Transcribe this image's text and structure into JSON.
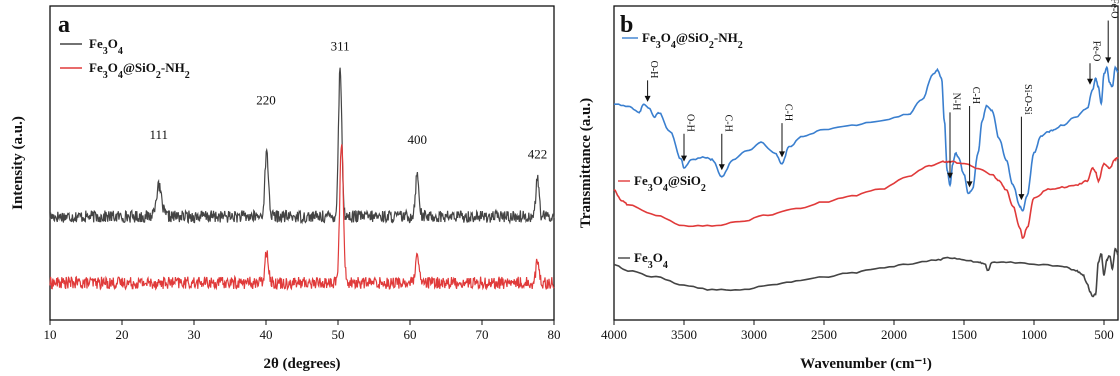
{
  "chart_data": [
    {
      "type": "line",
      "panel": "a",
      "xlabel": "2θ (degrees)",
      "ylabel": "Intensity (a.u.)",
      "xlim": [
        10,
        80
      ],
      "xticks": [
        10,
        20,
        30,
        40,
        50,
        60,
        70,
        80
      ],
      "y_tick_labels": false,
      "grid": false,
      "legend_position": "top-left",
      "peak_labels": [
        {
          "x": 25.1,
          "y": 0.64,
          "text": "111"
        },
        {
          "x": 40.0,
          "y": 0.78,
          "text": "220"
        },
        {
          "x": 50.3,
          "y": 1.0,
          "text": "311"
        },
        {
          "x": 61.0,
          "y": 0.62,
          "text": "400"
        },
        {
          "x": 77.7,
          "y": 0.56,
          "text": "422"
        }
      ],
      "series": [
        {
          "name": "Fe3O4",
          "color": "#444444",
          "baseline": 0.34,
          "noise": 0.025,
          "peaks": [
            [
              25.1,
              0.12,
              0.55
            ],
            [
              40.1,
              0.26,
              0.35
            ],
            [
              50.3,
              0.62,
              0.32
            ],
            [
              61.0,
              0.17,
              0.35
            ],
            [
              77.7,
              0.16,
              0.3
            ]
          ]
        },
        {
          "name": "Fe3O4@SiO2-NH2",
          "color": "#e03a3a",
          "baseline": 0.07,
          "noise": 0.025,
          "peaks": [
            [
              40.1,
              0.13,
              0.35
            ],
            [
              50.5,
              0.58,
              0.35
            ],
            [
              61.0,
              0.1,
              0.35
            ],
            [
              77.7,
              0.09,
              0.3
            ]
          ]
        }
      ]
    },
    {
      "type": "line",
      "panel": "b",
      "xlabel": "Wavenumber (cm⁻¹)",
      "ylabel": "Transmittance (a.u.)",
      "xlim": [
        4000,
        400
      ],
      "xticks": [
        4000,
        3500,
        3000,
        2500,
        2000,
        1500,
        1000,
        500
      ],
      "y_tick_labels": false,
      "grid": false,
      "series": [
        {
          "name": "Fe3O4@SiO2-NH2",
          "color": "#3a7fcf",
          "x": [
            4000,
            3900,
            3820,
            3790,
            3750,
            3710,
            3680,
            3600,
            3520,
            3500,
            3450,
            3350,
            3300,
            3230,
            3150,
            3050,
            2950,
            2850,
            2800,
            2750,
            2650,
            2500,
            2300,
            2100,
            1900,
            1800,
            1720,
            1690,
            1660,
            1640,
            1620,
            1600,
            1580,
            1560,
            1540,
            1500,
            1470,
            1440,
            1400,
            1370,
            1340,
            1300,
            1250,
            1200,
            1150,
            1100,
            1080,
            1050,
            1000,
            950,
            900,
            850,
            800,
            700,
            620,
            580,
            560,
            540,
            520,
            500,
            480,
            460,
            440,
            420,
            400
          ],
          "y": [
            0.78,
            0.77,
            0.74,
            0.78,
            0.76,
            0.72,
            0.74,
            0.65,
            0.52,
            0.48,
            0.52,
            0.53,
            0.52,
            0.44,
            0.52,
            0.56,
            0.6,
            0.55,
            0.5,
            0.58,
            0.63,
            0.66,
            0.68,
            0.7,
            0.73,
            0.8,
            0.92,
            0.94,
            0.9,
            0.7,
            0.47,
            0.4,
            0.5,
            0.55,
            0.53,
            0.45,
            0.36,
            0.38,
            0.55,
            0.7,
            0.77,
            0.75,
            0.62,
            0.52,
            0.4,
            0.3,
            0.28,
            0.35,
            0.55,
            0.63,
            0.65,
            0.66,
            0.68,
            0.72,
            0.76,
            0.85,
            0.9,
            0.86,
            0.78,
            0.92,
            0.95,
            0.88,
            0.86,
            0.95,
            0.93
          ]
        },
        {
          "name": "Fe3O4@SiO2",
          "color": "#e03a3a",
          "x": [
            4000,
            3950,
            3900,
            3700,
            3500,
            3300,
            3100,
            2900,
            2700,
            2500,
            2300,
            2100,
            1900,
            1750,
            1650,
            1600,
            1500,
            1400,
            1300,
            1250,
            1200,
            1150,
            1100,
            1080,
            1050,
            1000,
            900,
            800,
            700,
            620,
            580,
            560,
            540,
            500,
            460,
            420,
            400
          ],
          "y": [
            0.38,
            0.33,
            0.31,
            0.26,
            0.21,
            0.21,
            0.23,
            0.26,
            0.29,
            0.32,
            0.35,
            0.38,
            0.44,
            0.49,
            0.51,
            0.51,
            0.5,
            0.48,
            0.45,
            0.42,
            0.38,
            0.3,
            0.2,
            0.15,
            0.2,
            0.34,
            0.38,
            0.39,
            0.4,
            0.42,
            0.48,
            0.46,
            0.42,
            0.5,
            0.48,
            0.52,
            0.53
          ]
        },
        {
          "name": "Fe3O4",
          "color": "#444444",
          "x": [
            4000,
            3900,
            3700,
            3500,
            3300,
            3100,
            2900,
            2700,
            2500,
            2300,
            2100,
            1900,
            1700,
            1600,
            1500,
            1400,
            1350,
            1330,
            1300,
            1200,
            1000,
            800,
            700,
            650,
            620,
            600,
            580,
            560,
            540,
            520,
            500,
            480,
            460,
            440,
            420,
            400
          ],
          "y": [
            0.03,
            0.0,
            -0.03,
            -0.07,
            -0.09,
            -0.09,
            -0.07,
            -0.05,
            -0.03,
            -0.01,
            0.01,
            0.03,
            0.05,
            0.06,
            0.05,
            0.04,
            0.03,
            0.0,
            0.04,
            0.04,
            0.03,
            0.02,
            0.0,
            -0.02,
            -0.06,
            -0.1,
            -0.12,
            -0.11,
            0.04,
            0.08,
            -0.02,
            0.05,
            0.07,
            0.01,
            0.1,
            0.08
          ]
        }
      ],
      "annotations": [
        {
          "text": "O-H",
          "x": 3760,
          "y": 0.9,
          "tip_y": 0.79
        },
        {
          "text": "O-H",
          "x": 3500,
          "y": 0.65,
          "tip_y": 0.51
        },
        {
          "text": "C-H",
          "x": 3230,
          "y": 0.65,
          "tip_y": 0.47
        },
        {
          "text": "C-H",
          "x": 2800,
          "y": 0.7,
          "tip_y": 0.53
        },
        {
          "text": "N-H",
          "x": 1600,
          "y": 0.75,
          "tip_y": 0.43
        },
        {
          "text": "C-H",
          "x": 1460,
          "y": 0.78,
          "tip_y": 0.39
        },
        {
          "text": "Si-O-Si",
          "x": 1090,
          "y": 0.73,
          "tip_y": 0.33
        },
        {
          "text": "Fe-O",
          "x": 600,
          "y": 0.98,
          "tip_y": 0.87
        },
        {
          "text": "Fe-O",
          "x": 470,
          "y": 1.18,
          "tip_y": 0.97
        }
      ],
      "curve_labels": [
        {
          "series": "Fe3O4@SiO2-NH2",
          "text": "Fe3O4@SiO2-NH2"
        },
        {
          "series": "Fe3O4@SiO2",
          "text": "Fe3O4@SiO2"
        },
        {
          "series": "Fe3O4",
          "text": "Fe3O4"
        }
      ]
    }
  ],
  "panel_letters": {
    "a": "a",
    "b": "b"
  }
}
